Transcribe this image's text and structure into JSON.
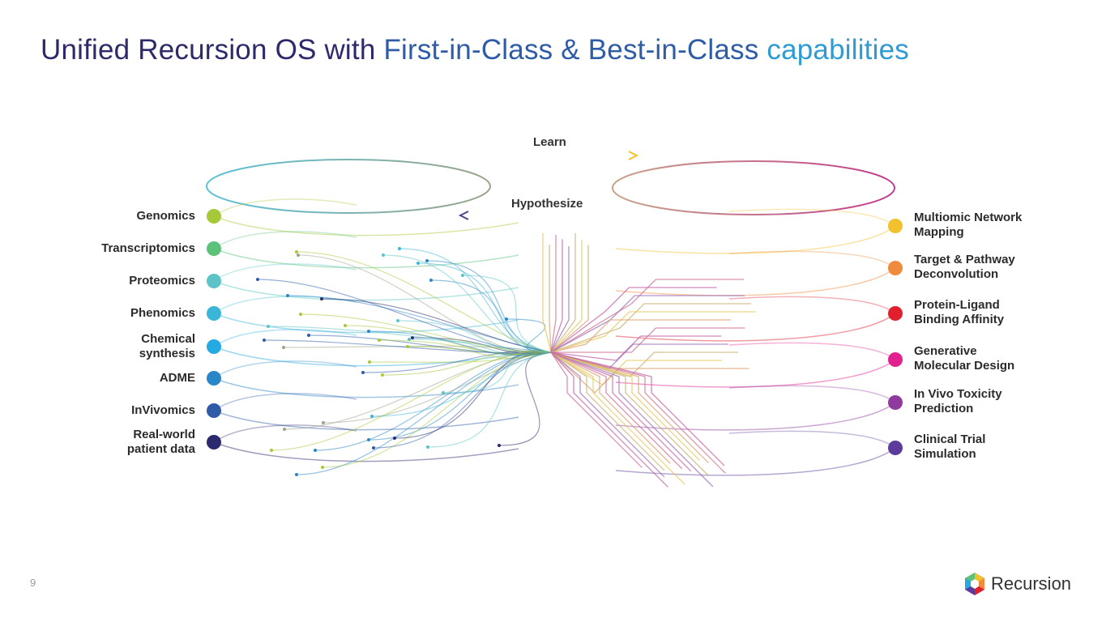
{
  "title": {
    "part1": "Unified Recursion OS with",
    "part2": "First-in-Class & Best-in-Class",
    "part3": "capabilities"
  },
  "diagram": {
    "learn_label": "Learn",
    "hypothesize_label": "Hypothesize",
    "left_items": [
      {
        "label": "Genomics",
        "color": "#a6c93a"
      },
      {
        "label": "Transcriptomics",
        "color": "#5cc27a"
      },
      {
        "label": "Proteomics",
        "color": "#5cc3c6"
      },
      {
        "label": "Phenomics",
        "color": "#3bb6d8"
      },
      {
        "label": "Chemical synthesis",
        "color": "#25a9e2"
      },
      {
        "label": "ADME",
        "color": "#2a86c6"
      },
      {
        "label": "InVivomics",
        "color": "#2f5ba8"
      },
      {
        "label": "Real-world patient data",
        "color": "#2b2a6e"
      }
    ],
    "right_items": [
      {
        "label": "Multiomic Network Mapping",
        "color": "#f2c12e"
      },
      {
        "label": "Target & Pathway Deconvolution",
        "color": "#f08a3c"
      },
      {
        "label": "Protein-Ligand Binding Affinity",
        "color": "#e0202e"
      },
      {
        "label": "Generative Molecular Design",
        "color": "#e3208f"
      },
      {
        "label": "In Vivo Toxicity Prediction",
        "color": "#8e3a9e"
      },
      {
        "label": "Clinical Trial Simulation",
        "color": "#5b3c9b"
      }
    ]
  },
  "footer": {
    "page_number": "9",
    "logo_text": "Recursion",
    "logo_mark": "."
  }
}
